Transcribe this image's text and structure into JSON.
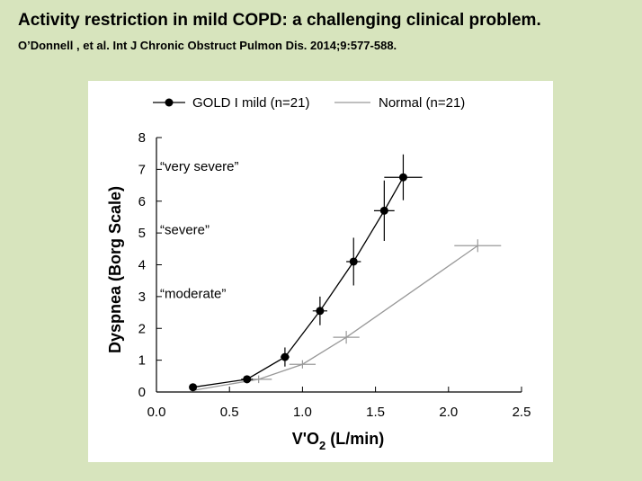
{
  "slide": {
    "title": "Activity restriction in mild COPD: a challenging clinical problem.",
    "citation": "O’Donnell  , et al. Int J Chronic Obstruct Pulmon Dis. 2014;9:577-588."
  },
  "chart_data": {
    "type": "line",
    "xlabel_main": "V'O",
    "xlabel_sub": "2",
    "xlabel_unit": " (L/min)",
    "ylabel": "Dyspnea (Borg Scale)",
    "xlim": [
      0,
      2.5
    ],
    "ylim": [
      0,
      8
    ],
    "x_ticks": [
      "0.0",
      "0.5",
      "1.0",
      "1.5",
      "2.0",
      "2.5"
    ],
    "y_ticks": [
      "0",
      "1",
      "2",
      "3",
      "4",
      "5",
      "6",
      "7",
      "8"
    ],
    "legend_position": "top",
    "grid": false,
    "annotations": [
      {
        "text": "“very severe”",
        "y": 7.1
      },
      {
        "text": "“severe”",
        "y": 5.1
      },
      {
        "text": "“moderate”",
        "y": 3.1
      }
    ],
    "series": [
      {
        "name": "GOLD I mild (n=21)",
        "color": "#000000",
        "marker": "filled-circle",
        "points": [
          {
            "x": 0.25,
            "y": 0.15,
            "xerr": 0.0,
            "yerr": 0.0
          },
          {
            "x": 0.62,
            "y": 0.4,
            "xerr": 0.04,
            "yerr": 0.12
          },
          {
            "x": 0.88,
            "y": 1.1,
            "xerr": 0.03,
            "yerr": 0.3
          },
          {
            "x": 1.12,
            "y": 2.55,
            "xerr": 0.05,
            "yerr": 0.45
          },
          {
            "x": 1.35,
            "y": 4.1,
            "xerr": 0.05,
            "yerr": 0.75
          },
          {
            "x": 1.56,
            "y": 5.7,
            "xerr": 0.07,
            "yerr": 0.95
          },
          {
            "x": 1.69,
            "y": 6.75,
            "xerr": 0.13,
            "yerr": 0.72
          }
        ]
      },
      {
        "name": "Normal (n=21)",
        "color": "#999999",
        "marker": "cross",
        "points": [
          {
            "x": 0.25,
            "y": 0.05,
            "xerr": 0.0,
            "yerr": 0.0
          },
          {
            "x": 0.7,
            "y": 0.4,
            "xerr": 0.09,
            "yerr": 0.12
          },
          {
            "x": 1.0,
            "y": 0.87,
            "xerr": 0.09,
            "yerr": 0.13
          },
          {
            "x": 1.3,
            "y": 1.72,
            "xerr": 0.09,
            "yerr": 0.2
          },
          {
            "x": 2.2,
            "y": 4.6,
            "xerr": 0.16,
            "yerr": 0.2
          }
        ]
      }
    ]
  }
}
